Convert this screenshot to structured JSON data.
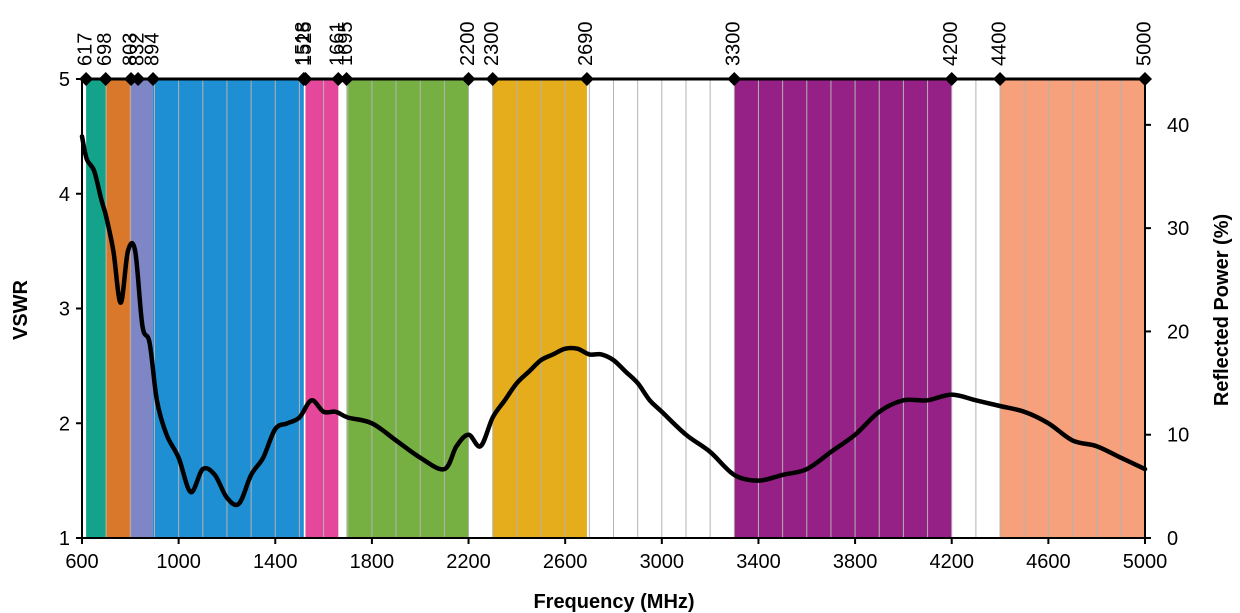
{
  "chart_data": {
    "type": "line",
    "xlabel": "Frequency (MHz)",
    "ylabel": "VSWR",
    "y2label": "Reflected Power (%)",
    "xlim": [
      600,
      5000
    ],
    "ylim": [
      1,
      5
    ],
    "y2lim": [
      0,
      44.44
    ],
    "x_ticks": [
      600,
      1000,
      1400,
      1800,
      2200,
      2600,
      3000,
      3400,
      3800,
      4200,
      4600,
      5000
    ],
    "y_ticks": [
      1,
      2,
      3,
      4,
      5
    ],
    "y2_ticks": [
      0,
      10,
      20,
      30,
      40
    ],
    "grid": "vertical",
    "band_edges": [
      617,
      698,
      803,
      832,
      894,
      1518,
      1525,
      1661,
      1695,
      2200,
      2300,
      2690,
      3300,
      4200,
      4400,
      5000
    ],
    "bands": [
      {
        "start": 617,
        "end": 698,
        "color": "#12a38a"
      },
      {
        "start": 698,
        "end": 803,
        "color": "#d9782a"
      },
      {
        "start": 803,
        "end": 894,
        "color": "#7f86c5"
      },
      {
        "start": 894,
        "end": 1518,
        "color": "#1f8fd3"
      },
      {
        "start": 1525,
        "end": 1661,
        "color": "#e5489a"
      },
      {
        "start": 1695,
        "end": 2200,
        "color": "#77b042"
      },
      {
        "start": 2300,
        "end": 2690,
        "color": "#e5ad1c"
      },
      {
        "start": 3300,
        "end": 4200,
        "color": "#962186"
      },
      {
        "start": 4400,
        "end": 5000,
        "color": "#f7a07c"
      }
    ],
    "series": [
      {
        "line_color": "#000000",
        "x": [
          600,
          620,
          650,
          680,
          700,
          730,
          760,
          790,
          820,
          850,
          880,
          910,
          950,
          1000,
          1050,
          1100,
          1150,
          1200,
          1250,
          1300,
          1350,
          1400,
          1450,
          1500,
          1550,
          1600,
          1650,
          1700,
          1800,
          1900,
          2000,
          2100,
          2150,
          2200,
          2250,
          2300,
          2350,
          2400,
          2450,
          2500,
          2550,
          2600,
          2650,
          2700,
          2750,
          2800,
          2850,
          2900,
          2950,
          3000,
          3100,
          3200,
          3300,
          3400,
          3500,
          3600,
          3700,
          3800,
          3900,
          4000,
          4100,
          4200,
          4300,
          4400,
          4500,
          4600,
          4700,
          4800,
          4900,
          5000
        ],
        "values": [
          4.5,
          4.3,
          4.2,
          3.95,
          3.8,
          3.5,
          3.05,
          3.5,
          3.5,
          2.85,
          2.7,
          2.2,
          1.9,
          1.7,
          1.4,
          1.6,
          1.55,
          1.35,
          1.3,
          1.55,
          1.7,
          1.95,
          2.0,
          2.05,
          2.2,
          2.1,
          2.1,
          2.05,
          2.0,
          1.85,
          1.7,
          1.6,
          1.8,
          1.9,
          1.8,
          2.05,
          2.2,
          2.35,
          2.45,
          2.55,
          2.6,
          2.65,
          2.65,
          2.6,
          2.6,
          2.55,
          2.45,
          2.35,
          2.2,
          2.1,
          1.9,
          1.75,
          1.55,
          1.5,
          1.55,
          1.6,
          1.75,
          1.9,
          2.1,
          2.2,
          2.2,
          2.25,
          2.2,
          2.15,
          2.1,
          2.0,
          1.85,
          1.8,
          1.7,
          1.6
        ]
      }
    ]
  }
}
